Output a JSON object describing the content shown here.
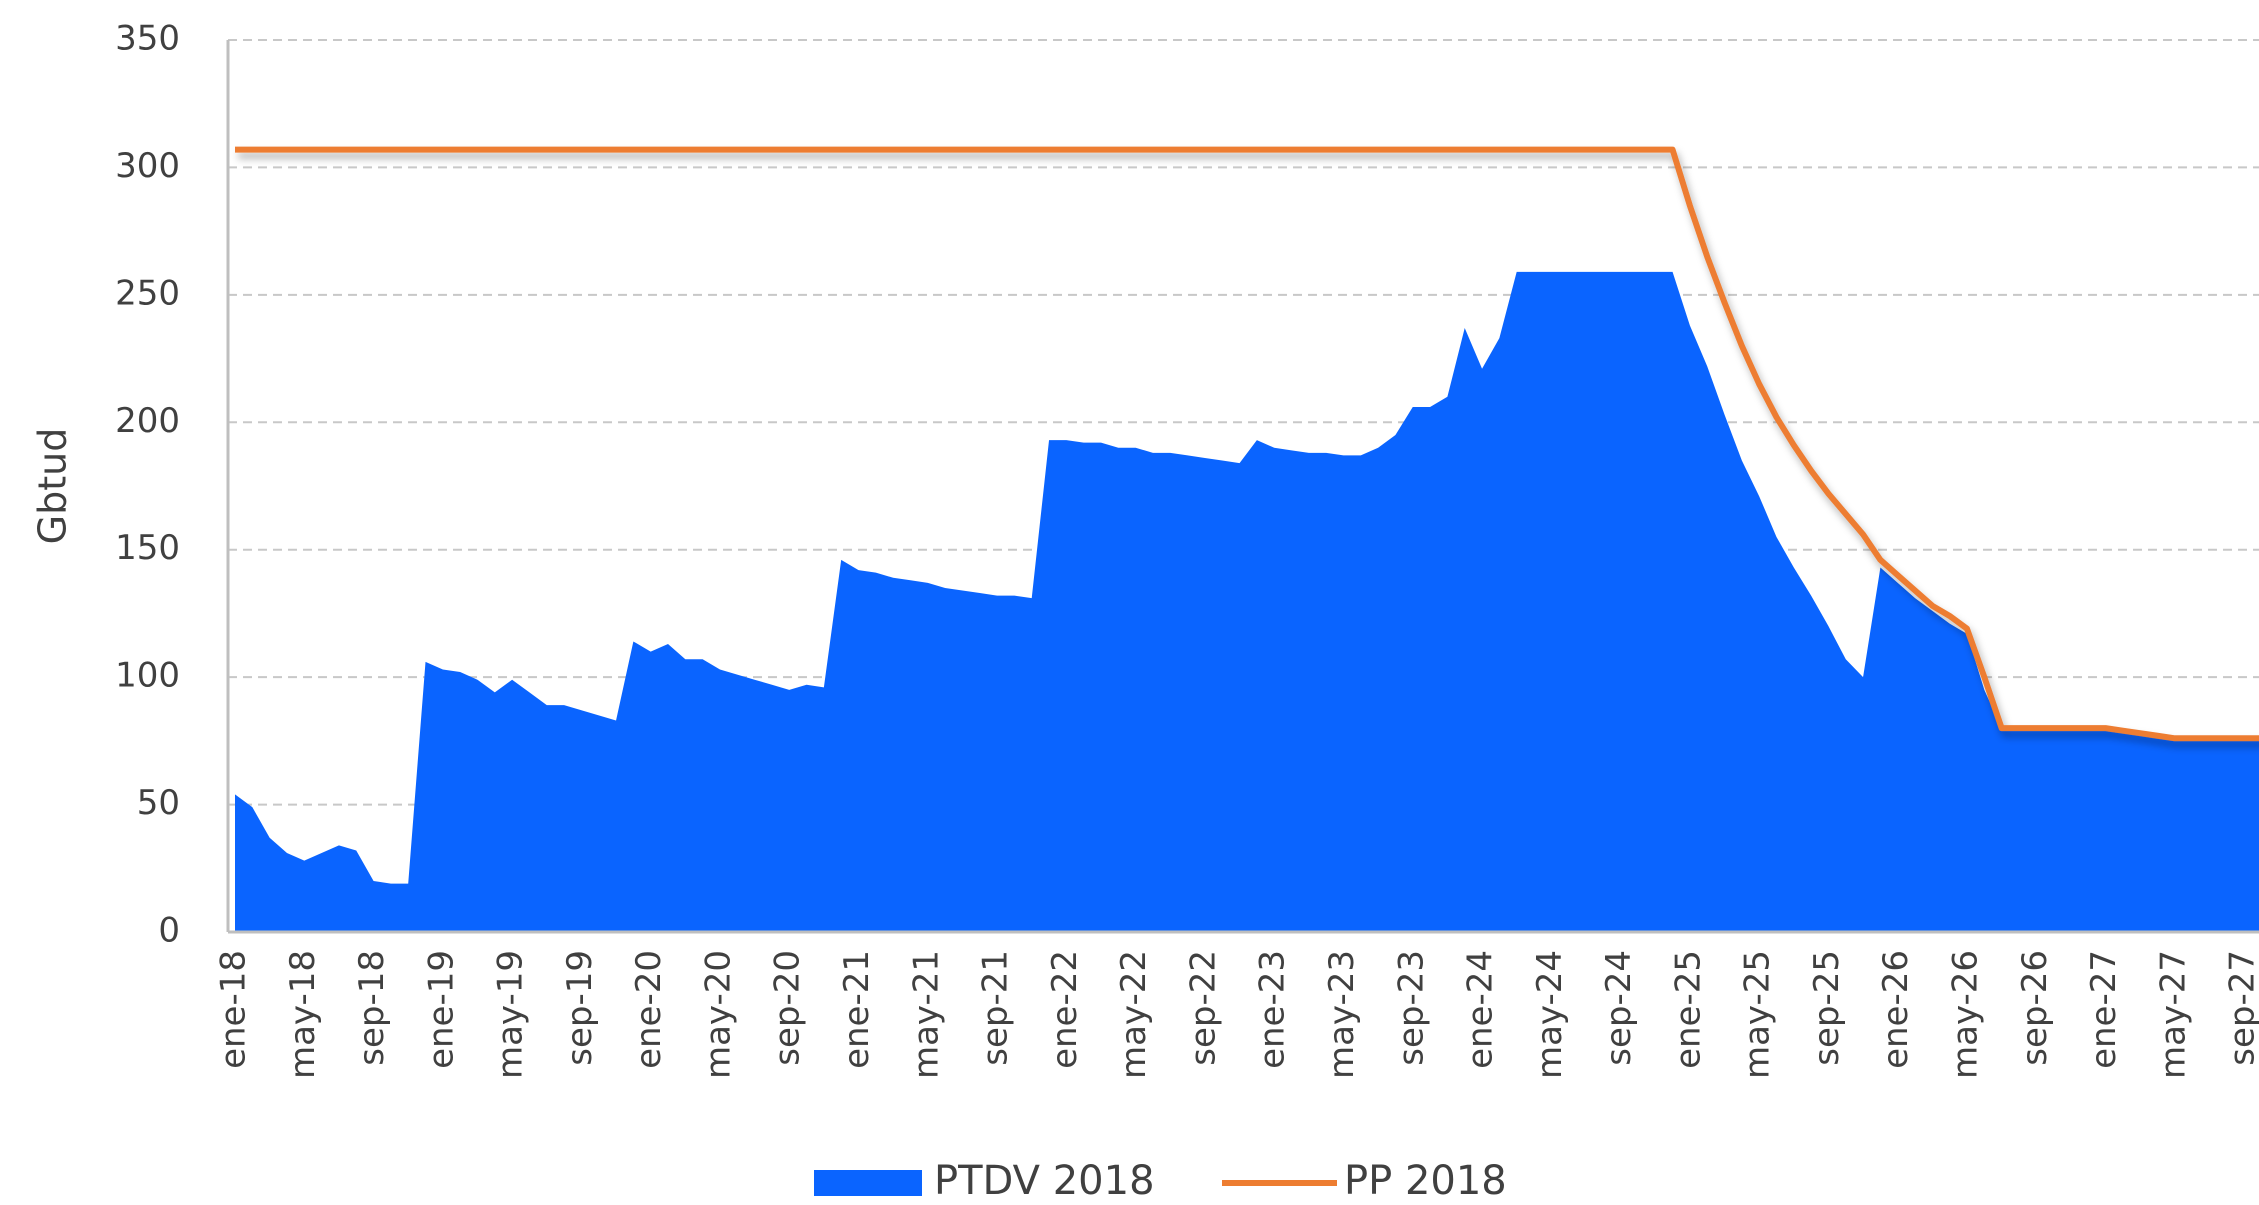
{
  "chart_data": {
    "type": "area-line",
    "y_label": "Gbtud",
    "categories": [
      "ene-18",
      null,
      null,
      null,
      "may-18",
      null,
      null,
      null,
      "sep-18",
      null,
      null,
      null,
      "ene-19",
      null,
      null,
      null,
      "may-19",
      null,
      null,
      null,
      "sep-19",
      null,
      null,
      null,
      "ene-20",
      null,
      null,
      null,
      "may-20",
      null,
      null,
      null,
      "sep-20",
      null,
      null,
      null,
      "ene-21",
      null,
      null,
      null,
      "may-21",
      null,
      null,
      null,
      "sep-21",
      null,
      null,
      null,
      "ene-22",
      null,
      null,
      null,
      "may-22",
      null,
      null,
      null,
      "sep-22",
      null,
      null,
      null,
      "ene-23",
      null,
      null,
      null,
      "may-23",
      null,
      null,
      null,
      "sep-23",
      null,
      null,
      null,
      "ene-24",
      null,
      null,
      null,
      "may-24",
      null,
      null,
      null,
      "sep-24",
      null,
      null,
      null,
      "ene-25",
      null,
      null,
      null,
      "may-25",
      null,
      null,
      null,
      "sep-25",
      null,
      null,
      null,
      "ene-26",
      null,
      null,
      null,
      "may-26",
      null,
      null,
      null,
      "sep-26",
      null,
      null,
      null,
      "ene-27",
      null,
      null,
      null,
      "may-27",
      null,
      null,
      null,
      "sep-27",
      null
    ],
    "series": [
      {
        "name": "PTDV 2018",
        "kind": "area",
        "color": "#0a64ff",
        "values": [
          54,
          49,
          37,
          31,
          28,
          31,
          34,
          32,
          20,
          19,
          19,
          106,
          103,
          102,
          99,
          94,
          99,
          94,
          89,
          89,
          87,
          85,
          83,
          114,
          110,
          113,
          107,
          107,
          103,
          101,
          99,
          97,
          95,
          97,
          96,
          146,
          142,
          141,
          139,
          138,
          137,
          135,
          134,
          133,
          132,
          132,
          131,
          193,
          193,
          192,
          192,
          190,
          190,
          188,
          188,
          187,
          186,
          185,
          184,
          193,
          190,
          189,
          188,
          188,
          187,
          187,
          190,
          195,
          206,
          206,
          210,
          237,
          221,
          233,
          259,
          259,
          259,
          259,
          259,
          259,
          259,
          259,
          259,
          259,
          238,
          222,
          203,
          185,
          171,
          155,
          143,
          132,
          120,
          107,
          100,
          143,
          137,
          131,
          126,
          121,
          117,
          95,
          80,
          80,
          80,
          80,
          80,
          80,
          80,
          79,
          78,
          77,
          76,
          76,
          76,
          76,
          76,
          76
        ]
      },
      {
        "name": "PP 2018",
        "kind": "line",
        "color": "#ed7d31",
        "values": [
          307,
          307,
          307,
          307,
          307,
          307,
          307,
          307,
          307,
          307,
          307,
          307,
          307,
          307,
          307,
          307,
          307,
          307,
          307,
          307,
          307,
          307,
          307,
          307,
          307,
          307,
          307,
          307,
          307,
          307,
          307,
          307,
          307,
          307,
          307,
          307,
          307,
          307,
          307,
          307,
          307,
          307,
          307,
          307,
          307,
          307,
          307,
          307,
          307,
          307,
          307,
          307,
          307,
          307,
          307,
          307,
          307,
          307,
          307,
          307,
          307,
          307,
          307,
          307,
          307,
          307,
          307,
          307,
          307,
          307,
          307,
          307,
          307,
          307,
          307,
          307,
          307,
          307,
          307,
          307,
          307,
          307,
          307,
          307,
          285,
          265,
          247,
          230,
          215,
          202,
          191,
          181,
          172,
          164,
          156,
          146,
          140,
          134,
          128,
          124,
          119,
          100,
          80,
          80,
          80,
          80,
          80,
          80,
          80,
          79,
          78,
          77,
          76,
          76,
          76,
          76,
          76,
          76
        ]
      }
    ],
    "ylim": [
      0,
      350
    ],
    "yticks": [
      0,
      50,
      100,
      150,
      200,
      250,
      300,
      350
    ],
    "grid": true
  }
}
